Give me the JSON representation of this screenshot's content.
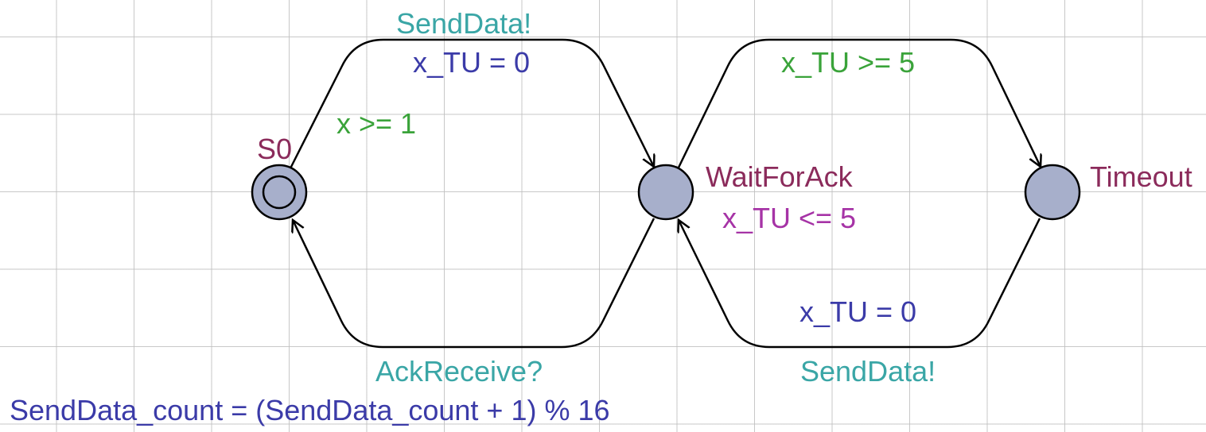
{
  "colors": {
    "location_name": "#8b2b5b",
    "synchronisation": "#3aa6a6",
    "assignment": "#3b3ba8",
    "guard": "#3aa33a",
    "invariant": "#a633a6",
    "location_fill": "#a7afcb",
    "edge": "#000000"
  },
  "locations": {
    "s0": {
      "name": "S0",
      "initial": true
    },
    "wait": {
      "name": "WaitForAck",
      "invariant": "x_TU <= 5"
    },
    "timeout": {
      "name": "Timeout"
    }
  },
  "edges": {
    "s0_to_wait": {
      "sync": "SendData!",
      "assignment": "x_TU = 0",
      "guard": "x >= 1"
    },
    "wait_to_s0": {
      "sync": "AckReceive?",
      "assignment": "SendData_count = (SendData_count + 1) % 16"
    },
    "wait_to_timeout": {
      "guard": "x_TU >= 5"
    },
    "timeout_to_wait": {
      "assignment": "x_TU = 0",
      "sync": "SendData!"
    }
  }
}
